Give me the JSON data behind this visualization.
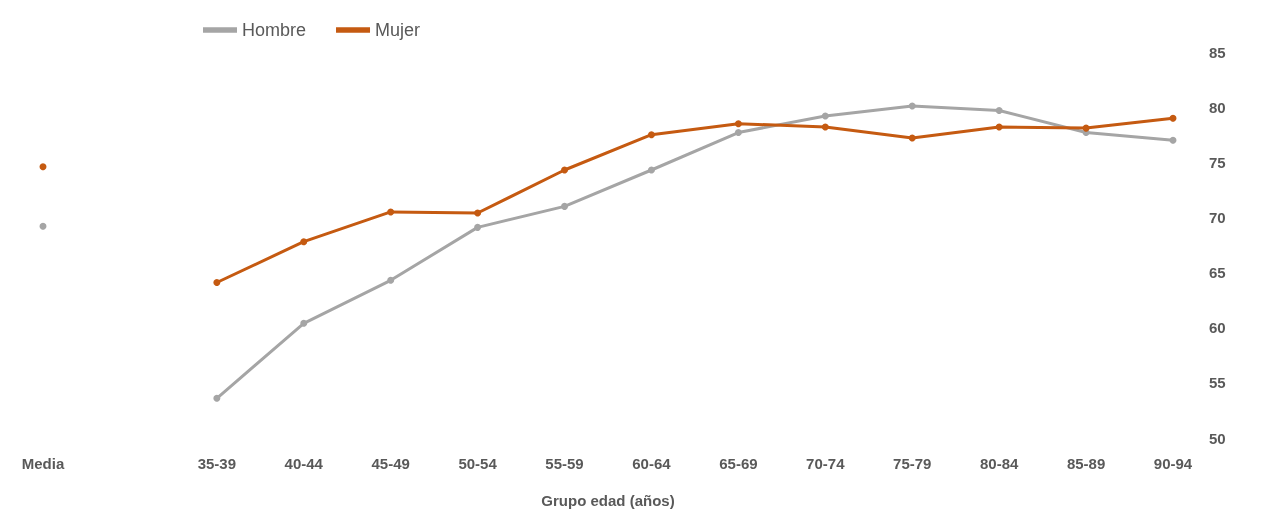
{
  "chart_data": {
    "type": "line",
    "xlabel": "Grupo edad (años)",
    "categories": [
      "Media",
      null,
      "35-39",
      "40-44",
      "45-49",
      "50-54",
      "55-59",
      "60-64",
      "65-69",
      "70-74",
      "75-79",
      "80-84",
      "85-89",
      "90-94"
    ],
    "series": [
      {
        "name": "Hombre",
        "color": "#a5a5a5",
        "values": [
          69.2,
          null,
          53.6,
          60.4,
          64.3,
          69.1,
          71.0,
          74.3,
          77.7,
          79.2,
          80.1,
          79.7,
          77.7,
          77.0
        ]
      },
      {
        "name": "Mujer",
        "color": "#c55a11",
        "values": [
          74.6,
          null,
          64.1,
          67.8,
          70.5,
          70.4,
          74.3,
          77.5,
          78.5,
          78.2,
          77.2,
          78.2,
          78.1,
          79.0
        ]
      }
    ],
    "ylim": [
      50,
      85
    ],
    "yticks": [
      50,
      55,
      60,
      65,
      70,
      75,
      80,
      85
    ],
    "grid": false,
    "legend": "top left",
    "marker": "circle",
    "line_style": "solid"
  }
}
